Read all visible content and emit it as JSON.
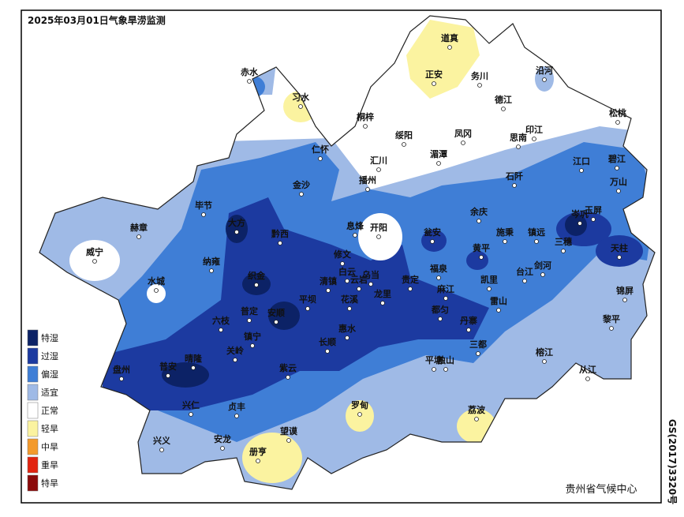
{
  "title": "2025年03月01日气象旱涝监测",
  "legend": [
    {
      "label": "特湿",
      "color": "#0c2266"
    },
    {
      "label": "过湿",
      "color": "#1c3aa0"
    },
    {
      "label": "偏湿",
      "color": "#3f7ed6"
    },
    {
      "label": "适宜",
      "color": "#9fbae6"
    },
    {
      "label": "正常",
      "color": "#ffffff"
    },
    {
      "label": "轻旱",
      "color": "#fbf3a0"
    },
    {
      "label": "中旱",
      "color": "#f39a2c"
    },
    {
      "label": "重旱",
      "color": "#e2230f"
    },
    {
      "label": "特旱",
      "color": "#8b0a0a"
    }
  ],
  "places": [
    "道真",
    "正安",
    "务川",
    "赤水",
    "习水",
    "沿河",
    "德江",
    "松桃",
    "桐梓",
    "绥阳",
    "凤冈",
    "印江",
    "思南",
    "仁怀",
    "汇川",
    "湄潭",
    "江口",
    "碧江",
    "金沙",
    "播州",
    "石阡",
    "万山",
    "毕节",
    "大方",
    "赫章",
    "黔西",
    "息烽",
    "开阳",
    "瓮安",
    "余庆",
    "施秉",
    "镇远",
    "岑巩",
    "玉屏",
    "三穗",
    "天柱",
    "威宁",
    "纳雍",
    "修文",
    "黄平",
    "白云",
    "乌当",
    "福泉",
    "台江",
    "剑河",
    "水城",
    "织金",
    "清镇",
    "云岩",
    "贵定",
    "麻江",
    "凯里",
    "雷山",
    "锦屏",
    "平坝",
    "龙里",
    "花溪",
    "安顺",
    "普定",
    "六枝",
    "都匀",
    "丹寨",
    "黎平",
    "镇宁",
    "惠水",
    "长顺",
    "关岭",
    "三都",
    "榕江",
    "盘州",
    "普安",
    "晴隆",
    "紫云",
    "平塘",
    "独山",
    "从江",
    "兴仁",
    "贞丰",
    "罗甸",
    "荔波",
    "兴义",
    "安龙",
    "望谟",
    "册亨"
  ],
  "credit": "贵州省气候中心",
  "map_number": "GS(2017)3320号"
}
